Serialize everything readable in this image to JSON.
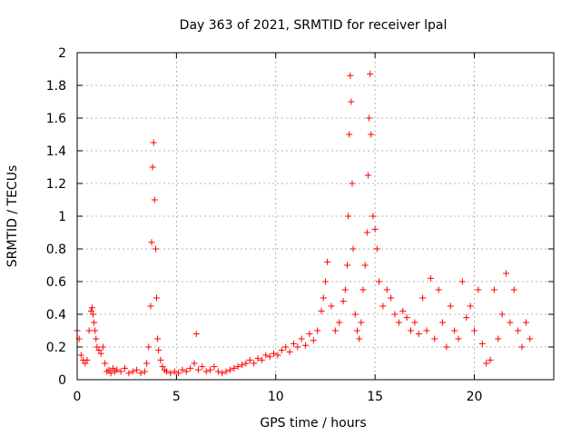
{
  "chart_data": {
    "type": "scatter",
    "title": "Day 363 of 2021, SRMTID for receiver lpal",
    "xlabel": "GPS time / hours",
    "ylabel": "SRMTID / TECUs",
    "xlim": [
      0,
      24
    ],
    "ylim": [
      0,
      2
    ],
    "x_ticks": [
      0,
      5,
      10,
      15,
      20
    ],
    "x_tick_labels": [
      "0",
      "5",
      "10",
      "15",
      "20"
    ],
    "y_ticks": [
      0,
      0.2,
      0.4,
      0.6,
      0.8,
      1,
      1.2,
      1.4,
      1.6,
      1.8,
      2
    ],
    "y_tick_labels": [
      "0",
      "0.2",
      "0.4",
      "0.6",
      "0.8",
      "1",
      "1.2",
      "1.4",
      "1.6",
      "1.8",
      "2"
    ],
    "grid": true,
    "marker": "+",
    "marker_color": "#ff0000",
    "series": [
      {
        "name": "SRMTID",
        "x": [
          0.0,
          0.1,
          0.2,
          0.3,
          0.4,
          0.5,
          0.6,
          0.7,
          0.75,
          0.8,
          0.85,
          0.9,
          0.95,
          1.0,
          1.1,
          1.2,
          1.3,
          1.4,
          1.5,
          1.6,
          1.7,
          1.8,
          1.9,
          2.0,
          2.2,
          2.4,
          2.6,
          2.8,
          3.0,
          3.2,
          3.4,
          3.5,
          3.6,
          3.7,
          3.75,
          3.8,
          3.85,
          3.9,
          3.95,
          4.0,
          4.05,
          4.1,
          4.2,
          4.3,
          4.4,
          4.5,
          4.7,
          4.9,
          5.1,
          5.3,
          5.5,
          5.7,
          5.9,
          6.0,
          6.1,
          6.3,
          6.5,
          6.7,
          6.9,
          7.1,
          7.3,
          7.5,
          7.7,
          7.9,
          8.1,
          8.3,
          8.5,
          8.7,
          8.9,
          9.1,
          9.3,
          9.5,
          9.7,
          9.9,
          10.1,
          10.3,
          10.5,
          10.7,
          10.9,
          11.1,
          11.3,
          11.5,
          11.7,
          11.9,
          12.1,
          12.3,
          12.4,
          12.5,
          12.6,
          12.8,
          13.0,
          13.2,
          13.4,
          13.5,
          13.6,
          13.65,
          13.7,
          13.75,
          13.8,
          13.85,
          13.9,
          14.0,
          14.1,
          14.2,
          14.3,
          14.4,
          14.5,
          14.6,
          14.65,
          14.7,
          14.75,
          14.8,
          14.9,
          15.0,
          15.1,
          15.2,
          15.4,
          15.6,
          15.8,
          16.0,
          16.2,
          16.4,
          16.6,
          16.8,
          17.0,
          17.2,
          17.4,
          17.6,
          17.8,
          18.0,
          18.2,
          18.4,
          18.6,
          18.8,
          19.0,
          19.2,
          19.4,
          19.6,
          19.8,
          20.0,
          20.2,
          20.4,
          20.6,
          20.8,
          21.0,
          21.2,
          21.4,
          21.6,
          21.8,
          22.0,
          22.2,
          22.4,
          22.6,
          22.8
        ],
        "y": [
          0.3,
          0.25,
          0.15,
          0.12,
          0.1,
          0.12,
          0.3,
          0.42,
          0.44,
          0.4,
          0.35,
          0.3,
          0.25,
          0.2,
          0.18,
          0.16,
          0.2,
          0.1,
          0.05,
          0.06,
          0.04,
          0.07,
          0.05,
          0.06,
          0.05,
          0.07,
          0.04,
          0.05,
          0.06,
          0.04,
          0.05,
          0.1,
          0.2,
          0.45,
          0.84,
          1.3,
          1.45,
          1.1,
          0.8,
          0.5,
          0.25,
          0.18,
          0.12,
          0.08,
          0.06,
          0.05,
          0.04,
          0.05,
          0.04,
          0.06,
          0.05,
          0.07,
          0.1,
          0.28,
          0.06,
          0.08,
          0.05,
          0.06,
          0.08,
          0.05,
          0.04,
          0.05,
          0.06,
          0.07,
          0.08,
          0.09,
          0.1,
          0.12,
          0.1,
          0.13,
          0.12,
          0.15,
          0.14,
          0.16,
          0.15,
          0.18,
          0.2,
          0.17,
          0.22,
          0.2,
          0.25,
          0.21,
          0.28,
          0.24,
          0.3,
          0.42,
          0.5,
          0.6,
          0.72,
          0.45,
          0.3,
          0.35,
          0.48,
          0.55,
          0.7,
          1.0,
          1.5,
          1.86,
          1.7,
          1.2,
          0.8,
          0.4,
          0.3,
          0.25,
          0.35,
          0.55,
          0.7,
          0.9,
          1.25,
          1.6,
          1.87,
          1.5,
          1.0,
          0.92,
          0.8,
          0.6,
          0.45,
          0.55,
          0.5,
          0.4,
          0.35,
          0.42,
          0.38,
          0.3,
          0.35,
          0.28,
          0.5,
          0.3,
          0.62,
          0.25,
          0.55,
          0.35,
          0.2,
          0.45,
          0.3,
          0.25,
          0.6,
          0.38,
          0.45,
          0.3,
          0.55,
          0.22,
          0.1,
          0.12,
          0.55,
          0.25,
          0.4,
          0.65,
          0.35,
          0.55,
          0.3,
          0.2,
          0.35,
          0.25
        ]
      }
    ]
  }
}
